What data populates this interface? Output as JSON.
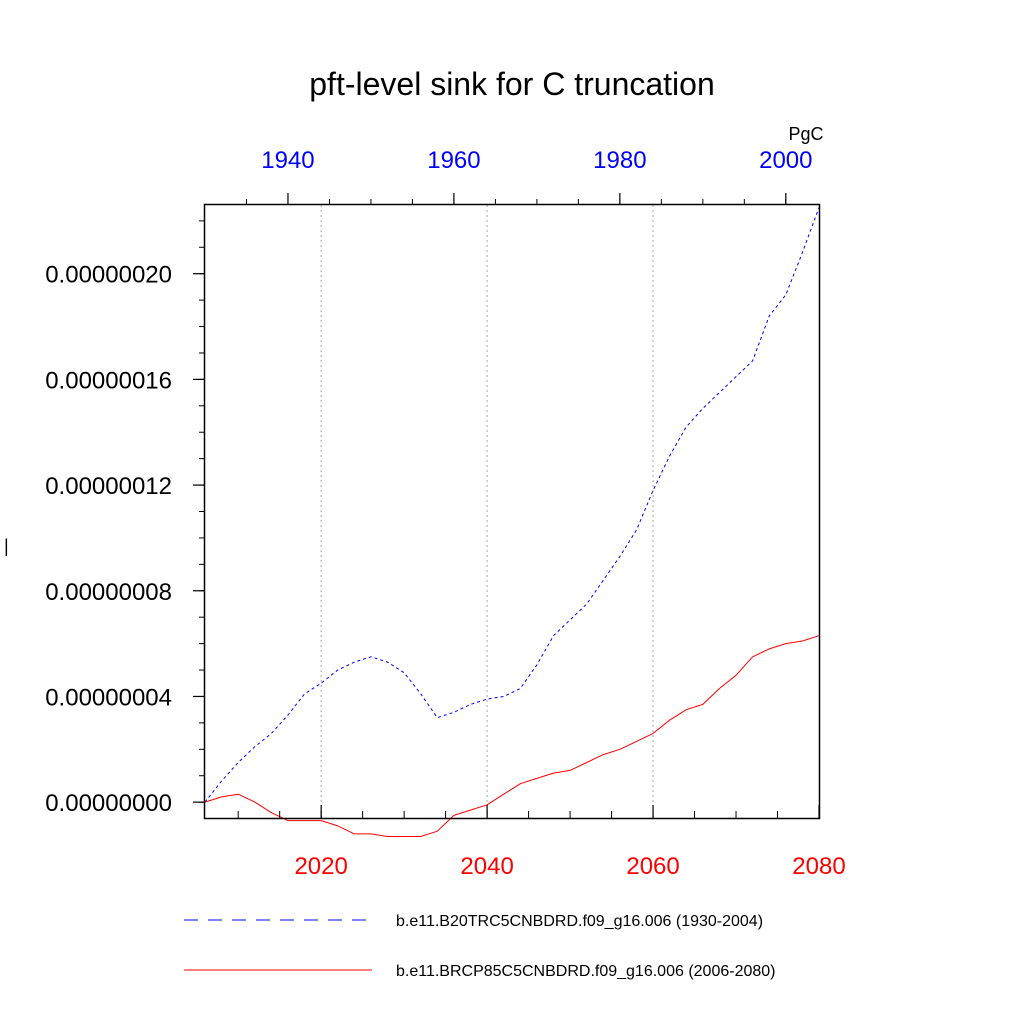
{
  "chart_data": {
    "type": "line",
    "title": "pft-level sink for C truncation",
    "units_label": "PgC",
    "ylabel": "|",
    "ylim": [
      -6e-09,
      2.26e-07
    ],
    "yticks": [
      0,
      4e-08,
      8e-08,
      1.2e-07,
      1.6e-07,
      2e-07
    ],
    "ytick_labels": [
      "0.00000000",
      "0.00000004",
      "0.00000008",
      "0.00000012",
      "0.00000016",
      "0.00000020"
    ],
    "bottom_axis": {
      "range": [
        2006,
        2080
      ],
      "ticks": [
        2020,
        2040,
        2060,
        2080
      ],
      "tick_labels": [
        "2020",
        "2040",
        "2060",
        "2080"
      ],
      "color": "#ff0000"
    },
    "top_axis": {
      "range": [
        1930,
        2004
      ],
      "ticks": [
        1940,
        1960,
        1980,
        2000
      ],
      "tick_labels": [
        "1940",
        "1960",
        "1980",
        "2000"
      ],
      "color": "#0000ff"
    },
    "grid": "vertical dotted",
    "series": [
      {
        "name": "b.e11.B20TRC5CNBDRD.f09_g16.006 (1930-2004)",
        "axis": "top",
        "color": "#0000ff",
        "dash": true,
        "x": [
          1930,
          1932,
          1934,
          1936,
          1938,
          1940,
          1942,
          1944,
          1946,
          1948,
          1950,
          1952,
          1954,
          1956,
          1958,
          1960,
          1962,
          1964,
          1966,
          1968,
          1970,
          1972,
          1974,
          1976,
          1978,
          1980,
          1982,
          1984,
          1986,
          1988,
          1990,
          1992,
          1994,
          1996,
          1998,
          2000,
          2002,
          2004
        ],
        "y": [
          0.0,
          8e-09,
          1.5e-08,
          2.1e-08,
          2.6e-08,
          3.3e-08,
          4.1e-08,
          4.5e-08,
          5e-08,
          5.3e-08,
          5.5e-08,
          5.3e-08,
          4.9e-08,
          4.1e-08,
          3.2e-08,
          3.4e-08,
          3.7e-08,
          3.9e-08,
          4e-08,
          4.3e-08,
          5.2e-08,
          6.3e-08,
          6.9e-08,
          7.5e-08,
          8.4e-08,
          9.3e-08,
          1.03e-07,
          1.18e-07,
          1.31e-07,
          1.42e-07,
          1.49e-07,
          1.55e-07,
          1.61e-07,
          1.67e-07,
          1.84e-07,
          1.92e-07,
          2.08e-07,
          2.25e-07
        ]
      },
      {
        "name": "b.e11.BRCP85C5CNBDRD.f09_g16.006 (2006-2080)",
        "axis": "bottom",
        "color": "#ff0000",
        "dash": false,
        "x": [
          2006,
          2008,
          2010,
          2012,
          2014,
          2016,
          2018,
          2020,
          2022,
          2024,
          2026,
          2028,
          2030,
          2032,
          2034,
          2036,
          2038,
          2040,
          2042,
          2044,
          2046,
          2048,
          2050,
          2052,
          2054,
          2056,
          2058,
          2060,
          2062,
          2064,
          2066,
          2068,
          2070,
          2072,
          2074,
          2076,
          2078,
          2080
        ],
        "y": [
          0.0,
          2e-09,
          3e-09,
          0.0,
          -4e-09,
          -7e-09,
          -7e-09,
          -7e-09,
          -9e-09,
          -1.2e-08,
          -1.2e-08,
          -1.3e-08,
          -1.3e-08,
          -1.3e-08,
          -1.1e-08,
          -5e-09,
          -3e-09,
          -1e-09,
          3e-09,
          7e-09,
          9e-09,
          1.1e-08,
          1.2e-08,
          1.5e-08,
          1.8e-08,
          2e-08,
          2.3e-08,
          2.6e-08,
          3.1e-08,
          3.5e-08,
          3.7e-08,
          4.3e-08,
          4.8e-08,
          5.5e-08,
          5.8e-08,
          6e-08,
          6.1e-08,
          6.3e-08
        ]
      }
    ]
  }
}
